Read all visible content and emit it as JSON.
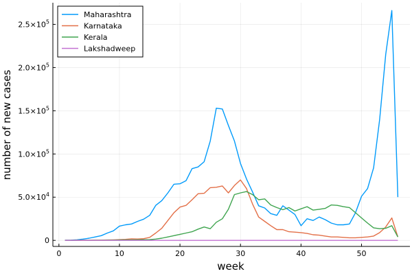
{
  "chart_data": {
    "type": "line",
    "title": "",
    "xlabel": "week",
    "ylabel": "number of new cases",
    "xlim": [
      -1,
      58
    ],
    "ylim": [
      -7000,
      275000
    ],
    "grid": true,
    "legend_position": "top-left",
    "x_ticks": [
      {
        "value": 0,
        "label": "0"
      },
      {
        "value": 10,
        "label": "10"
      },
      {
        "value": 20,
        "label": "20"
      },
      {
        "value": 30,
        "label": "30"
      },
      {
        "value": 40,
        "label": "40"
      },
      {
        "value": 50,
        "label": "50"
      }
    ],
    "y_ticks": [
      {
        "value": 0,
        "mantissa": "0",
        "exponent": ""
      },
      {
        "value": 50000,
        "mantissa": "5.0×10",
        "exponent": "4"
      },
      {
        "value": 100000,
        "mantissa": "1.0×10",
        "exponent": "5"
      },
      {
        "value": 150000,
        "mantissa": "1.5×10",
        "exponent": "5"
      },
      {
        "value": 200000,
        "mantissa": "2.0×10",
        "exponent": "5"
      },
      {
        "value": 250000,
        "mantissa": "2.5×10",
        "exponent": "5"
      }
    ],
    "x": [
      1,
      2,
      3,
      4,
      5,
      6,
      7,
      8,
      9,
      10,
      11,
      12,
      13,
      14,
      15,
      16,
      17,
      18,
      19,
      20,
      21,
      22,
      23,
      24,
      25,
      26,
      27,
      28,
      29,
      30,
      31,
      32,
      33,
      34,
      35,
      36,
      37,
      38,
      39,
      40,
      41,
      42,
      43,
      44,
      45,
      46,
      47,
      48,
      49,
      50,
      51,
      52,
      53,
      54,
      55,
      56
    ],
    "series": [
      {
        "name": "Maharashtra",
        "color": "#009AFA",
        "values": [
          200,
          300,
          700,
          1500,
          2500,
          4000,
          5500,
          8500,
          11000,
          16500,
          18000,
          19000,
          22000,
          24500,
          29000,
          40500,
          46000,
          55000,
          65000,
          65500,
          69000,
          83000,
          85000,
          91000,
          115000,
          153000,
          152000,
          133000,
          115000,
          89000,
          71000,
          56000,
          40000,
          37500,
          31000,
          29000,
          40000,
          35000,
          30000,
          17000,
          25000,
          23000,
          27000,
          24000,
          20000,
          18000,
          18000,
          19000,
          32000,
          51000,
          60000,
          84000,
          140000,
          215000,
          266000,
          50000
        ]
      },
      {
        "name": "Karnataka",
        "color": "#E36F47",
        "values": [
          100,
          100,
          200,
          200,
          200,
          300,
          300,
          500,
          600,
          900,
          1200,
          1800,
          1600,
          2000,
          3500,
          8500,
          14000,
          23000,
          32000,
          38500,
          40500,
          47000,
          54000,
          54500,
          61000,
          61500,
          63000,
          55000,
          63500,
          70000,
          60000,
          42000,
          27000,
          22000,
          17000,
          12500,
          12500,
          10000,
          9500,
          9000,
          8000,
          6500,
          6000,
          5000,
          4000,
          4000,
          3500,
          3000,
          3000,
          3500,
          4000,
          5000,
          9000,
          15500,
          26000,
          4000
        ]
      },
      {
        "name": "Kerala",
        "color": "#3EA44E",
        "values": [
          100,
          100,
          100,
          100,
          100,
          200,
          200,
          300,
          300,
          500,
          600,
          600,
          700,
          800,
          900,
          1500,
          2500,
          4000,
          5500,
          7000,
          8500,
          10000,
          13000,
          15500,
          13500,
          21000,
          25000,
          36000,
          53000,
          55000,
          56500,
          53000,
          47000,
          48000,
          41000,
          38000,
          35500,
          38000,
          34000,
          36500,
          39000,
          35000,
          36000,
          37000,
          41000,
          40500,
          39000,
          38000,
          32000,
          26000,
          20000,
          14500,
          13500,
          14000,
          17000,
          4000
        ]
      },
      {
        "name": "Lakshadweep",
        "color": "#C271D2",
        "values": [
          0,
          0,
          0,
          0,
          0,
          0,
          0,
          0,
          0,
          0,
          0,
          0,
          0,
          0,
          0,
          0,
          0,
          0,
          0,
          0,
          0,
          0,
          0,
          0,
          0,
          0,
          0,
          0,
          0,
          0,
          0,
          0,
          0,
          0,
          0,
          0,
          0,
          0,
          0,
          0,
          0,
          0,
          0,
          0,
          0,
          0,
          0,
          0,
          0,
          0,
          0,
          0,
          0,
          0,
          0,
          0
        ]
      }
    ]
  }
}
